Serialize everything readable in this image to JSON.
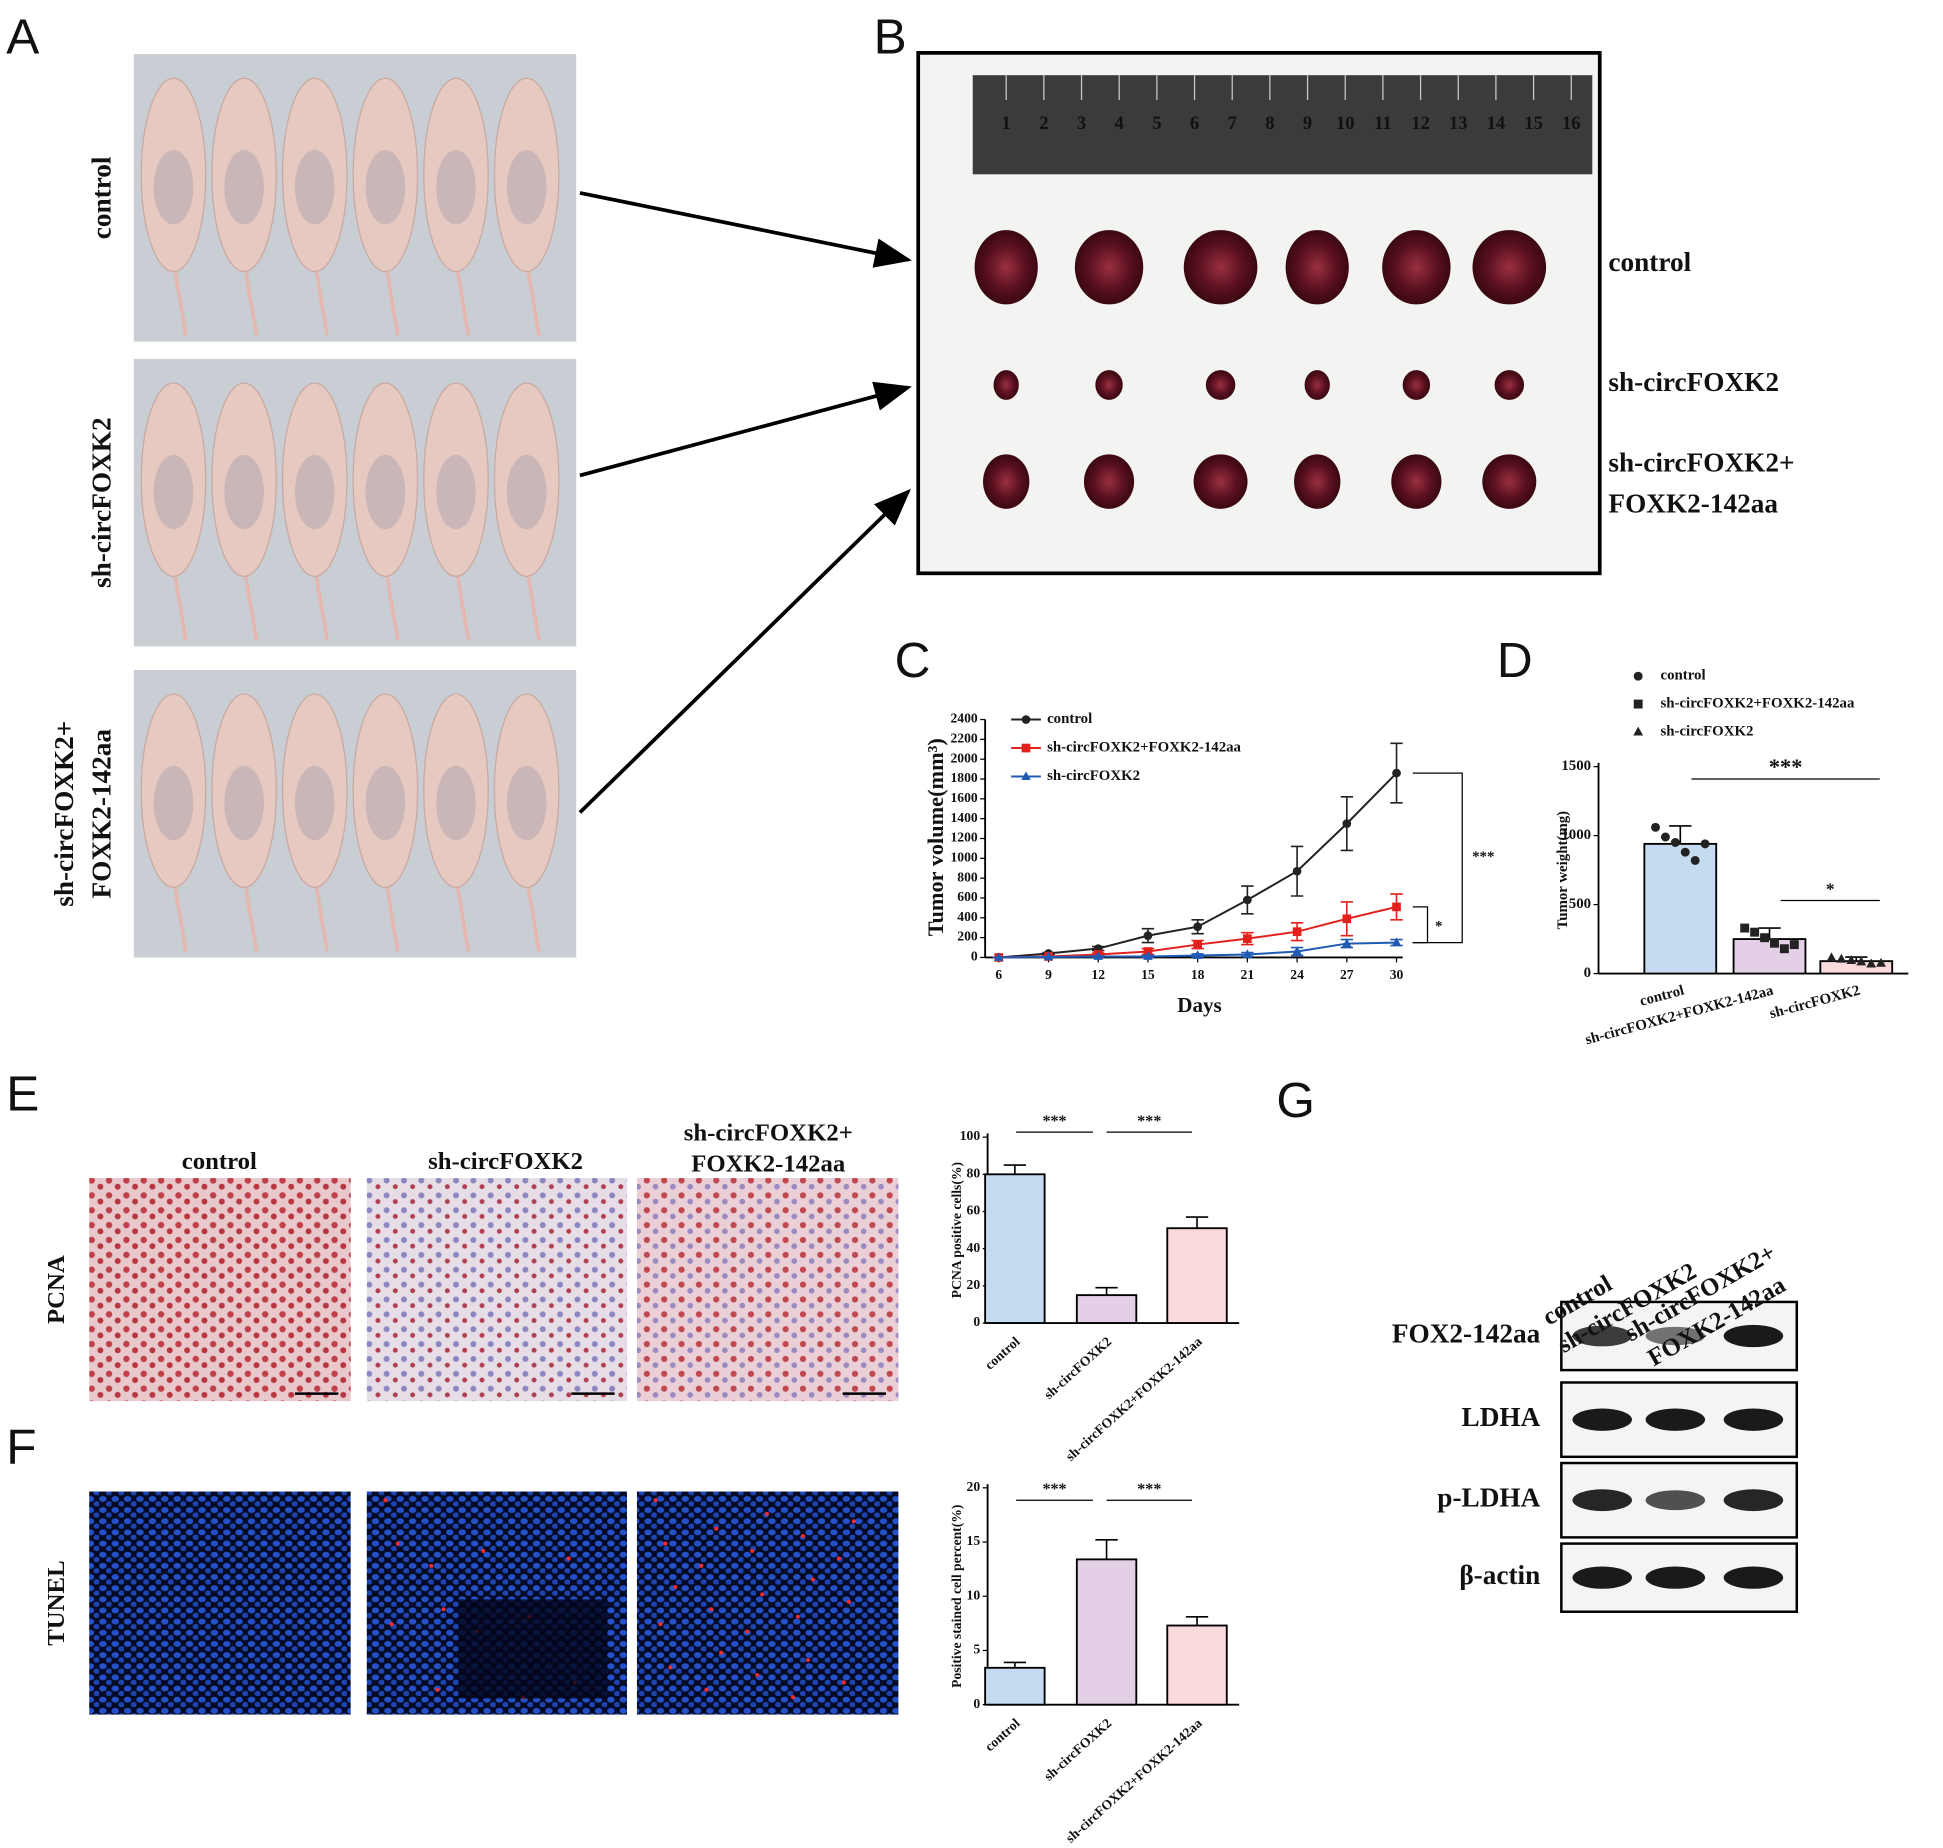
{
  "panel_labels": [
    "A",
    "B",
    "C",
    "D",
    "E",
    "F",
    "G"
  ],
  "panel_a": {
    "groups": [
      [
        "control"
      ],
      [
        "sh-circFOXK2"
      ],
      [
        "sh-circFOXK2+",
        "FOXK2-142aa"
      ]
    ]
  },
  "panel_b": {
    "ruler": [
      1,
      2,
      3,
      4,
      5,
      6,
      7,
      8,
      9,
      10,
      11,
      12,
      13,
      14,
      15,
      16
    ],
    "groups": [
      [
        "control"
      ],
      [
        "sh-circFOXK2"
      ],
      [
        "sh-circFOXK2+",
        "FOXK2-142aa"
      ]
    ]
  },
  "chart_data": [
    {
      "type": "line",
      "x_label": "Days",
      "y_label": "Tumor volume(mm³)",
      "x": [
        6,
        9,
        12,
        15,
        18,
        21,
        24,
        27,
        30
      ],
      "xlim": [
        6,
        30
      ],
      "xticks": [
        6,
        9,
        12,
        15,
        18,
        21,
        24,
        27,
        30
      ],
      "ylim": [
        0,
        2400
      ],
      "yticks": [
        0,
        200,
        400,
        600,
        800,
        1000,
        1200,
        1400,
        1600,
        1800,
        2000,
        2200,
        2400
      ],
      "series": [
        {
          "name": "control",
          "color": "#222222",
          "marker": "circle",
          "values": [
            0,
            40,
            90,
            220,
            310,
            580,
            870,
            1350,
            1860
          ],
          "errors": [
            0,
            10,
            20,
            70,
            70,
            140,
            250,
            270,
            300
          ]
        },
        {
          "name": "sh-circFOXK2+FOXK2-142aa",
          "color": "#e3211c",
          "marker": "square",
          "values": [
            0,
            10,
            30,
            60,
            130,
            190,
            260,
            390,
            510
          ],
          "errors": [
            0,
            5,
            15,
            30,
            40,
            60,
            90,
            170,
            130
          ]
        },
        {
          "name": "sh-circFOXK2",
          "color": "#1f5bb5",
          "marker": "triangle",
          "values": [
            0,
            5,
            10,
            10,
            20,
            30,
            60,
            140,
            150
          ],
          "errors": [
            0,
            3,
            5,
            10,
            15,
            20,
            40,
            40,
            30
          ]
        }
      ],
      "annotations": [
        "***",
        "*"
      ]
    },
    {
      "type": "bar",
      "y_label": "Tumor weight(mg)",
      "categories": [
        "control",
        "sh-circFOXK2+FOXK2-142aa",
        "sh-circFOXK2"
      ],
      "values": [
        940,
        250,
        90
      ],
      "errors": [
        130,
        80,
        30
      ],
      "points": [
        [
          1060,
          990,
          950,
          880,
          820,
          940
        ],
        [
          330,
          300,
          260,
          220,
          180,
          210
        ],
        [
          115,
          105,
          95,
          85,
          70,
          75
        ]
      ],
      "markers": [
        "circle",
        "square",
        "triangle"
      ],
      "colors": [
        "#c5dcf0",
        "#e3cfe6",
        "#fadadd"
      ],
      "ylim": [
        0,
        1500
      ],
      "yticks": [
        0,
        500,
        1000,
        1500
      ],
      "annotations": [
        "***",
        "*"
      ]
    },
    {
      "type": "bar",
      "y_label": "PCNA positive cells(%)",
      "categories": [
        "control",
        "sh-circFOXK2",
        "sh-circFOXK2+FOXK2-142aa"
      ],
      "values": [
        80,
        15,
        51
      ],
      "errors": [
        5,
        4,
        6
      ],
      "colors": [
        "#c5dcf0",
        "#e3cfe6",
        "#fadadd"
      ],
      "ylim": [
        0,
        100
      ],
      "yticks": [
        0,
        20,
        40,
        60,
        80,
        100
      ],
      "annotations": [
        "***",
        "***"
      ]
    },
    {
      "type": "bar",
      "y_label": "Positive stained cell percent(%)",
      "categories": [
        "control",
        "sh-circFOXK2",
        "sh-circFOXK2+FOXK2-142aa"
      ],
      "values": [
        3.4,
        13.4,
        7.3
      ],
      "errors": [
        0.5,
        1.8,
        0.8
      ],
      "colors": [
        "#c5dcf0",
        "#e3cfe6",
        "#fadadd"
      ],
      "ylim": [
        0,
        20
      ],
      "yticks": [
        0,
        5,
        10,
        15,
        20
      ],
      "annotations": [
        "***",
        "***"
      ]
    }
  ],
  "panel_ef": {
    "columns": [
      [
        "control"
      ],
      [
        "sh-circFOXK2"
      ],
      [
        "sh-circFOXK2+",
        "FOXK2-142aa"
      ]
    ],
    "rows": [
      "PCNA",
      "TUNEL"
    ]
  },
  "panel_g": {
    "columns": [
      [
        "control"
      ],
      [
        "sh-circFOXK2"
      ],
      [
        "sh-circFOXK2+",
        "FOXK2-142aa"
      ]
    ],
    "rows": [
      "FOX2-142aa",
      "LDHA",
      "p-LDHA",
      "β-actin"
    ]
  }
}
